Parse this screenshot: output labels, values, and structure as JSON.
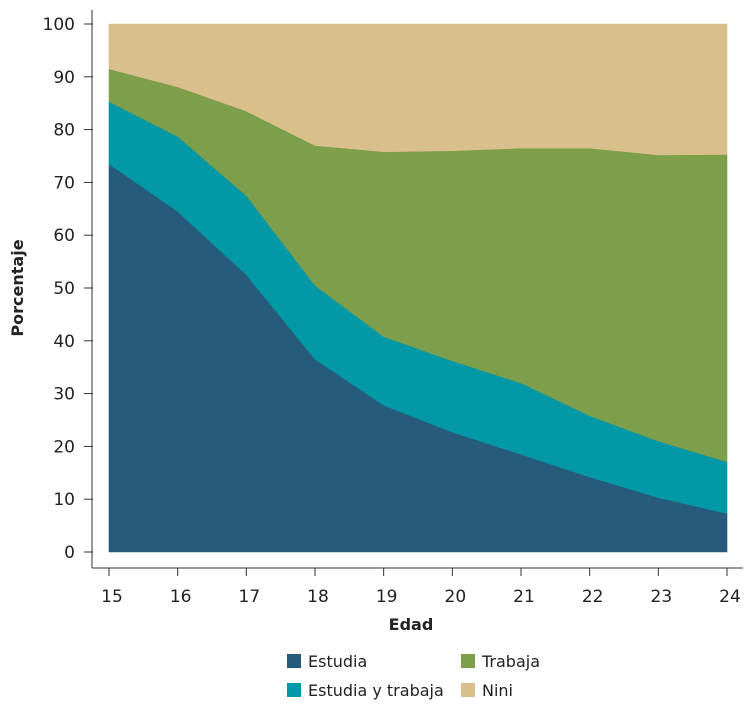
{
  "chart_data": {
    "type": "area",
    "stacked": true,
    "xlabel": "Edad",
    "ylabel": "Porcentaje",
    "x": [
      15,
      16,
      17,
      18,
      19,
      20,
      21,
      22,
      23,
      24
    ],
    "xlim": [
      15,
      24
    ],
    "ylim": [
      0,
      100
    ],
    "yticks": [
      0,
      10,
      20,
      30,
      40,
      50,
      60,
      70,
      80,
      90,
      100
    ],
    "grid": false,
    "legend_position": "bottom",
    "series": [
      {
        "name": "Estudia",
        "color": "#265b7c",
        "values": [
          73.5,
          64.5,
          52.5,
          36.5,
          27.8,
          22.7,
          18.5,
          14.2,
          10.3,
          7.3
        ]
      },
      {
        "name": "Estudia y trabaja",
        "color": "#0298a6",
        "values": [
          11.8,
          14.2,
          15.0,
          14.0,
          13.0,
          13.5,
          13.5,
          11.6,
          10.7,
          9.8
        ]
      },
      {
        "name": "Trabaja",
        "color": "#7d9e4a",
        "values": [
          6.2,
          9.4,
          16.0,
          26.5,
          35.0,
          39.8,
          44.5,
          50.7,
          54.2,
          58.2
        ]
      },
      {
        "name": "Nini",
        "color": "#d9bf8c",
        "values": [
          8.5,
          11.9,
          16.5,
          23.0,
          24.2,
          24.0,
          23.5,
          23.5,
          24.8,
          24.7
        ]
      }
    ]
  }
}
